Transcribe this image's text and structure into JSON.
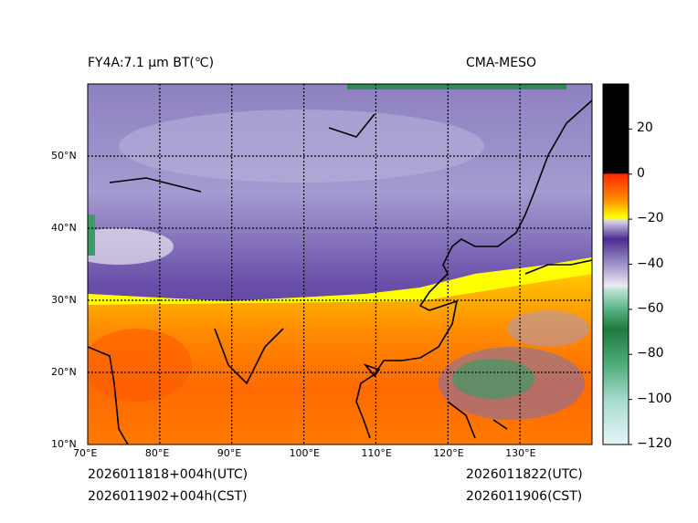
{
  "header": {
    "left_title": "FY4A:7.1 µm BT(℃)",
    "right_title": "CMA-MESO"
  },
  "map": {
    "lon_range": [
      70,
      140
    ],
    "lat_range": [
      10,
      60
    ],
    "lon_ticks": [
      {
        "value": 70,
        "label": "70°E"
      },
      {
        "value": 80,
        "label": "80°E"
      },
      {
        "value": 90,
        "label": "90°E"
      },
      {
        "value": 100,
        "label": "100°E"
      },
      {
        "value": 110,
        "label": "110°E"
      },
      {
        "value": 120,
        "label": "120°E"
      },
      {
        "value": 130,
        "label": "130°E"
      }
    ],
    "lat_ticks": [
      {
        "value": 10,
        "label": "10°N"
      },
      {
        "value": 20,
        "label": "20°N"
      },
      {
        "value": 30,
        "label": "30°N"
      },
      {
        "value": 40,
        "label": "40°N"
      },
      {
        "value": 50,
        "label": "50°N"
      }
    ]
  },
  "colorbar": {
    "range": [
      -120,
      40
    ],
    "ticks": [
      {
        "value": 20,
        "label": "20"
      },
      {
        "value": 0,
        "label": "0"
      },
      {
        "value": -20,
        "label": "−20"
      },
      {
        "value": -40,
        "label": "−40"
      },
      {
        "value": -60,
        "label": "−60"
      },
      {
        "value": -80,
        "label": "−80"
      },
      {
        "value": -100,
        "label": "−100"
      },
      {
        "value": -120,
        "label": "−120"
      }
    ],
    "colors": {
      "warm": "#000000",
      "red": "#ff2a00",
      "orange": "#ff9a00",
      "yellow": "#ffff00",
      "purple": "#4b2c93",
      "lavender": "#e8e4f0",
      "green": "#1f7a3c",
      "pale": "#e6f4f8"
    }
  },
  "footer": {
    "init_utc": "2026011818+004h(UTC)",
    "init_cst": "2026011902+004h(CST)",
    "valid_utc": "2026011822(UTC)",
    "valid_cst": "2026011906(CST)"
  }
}
